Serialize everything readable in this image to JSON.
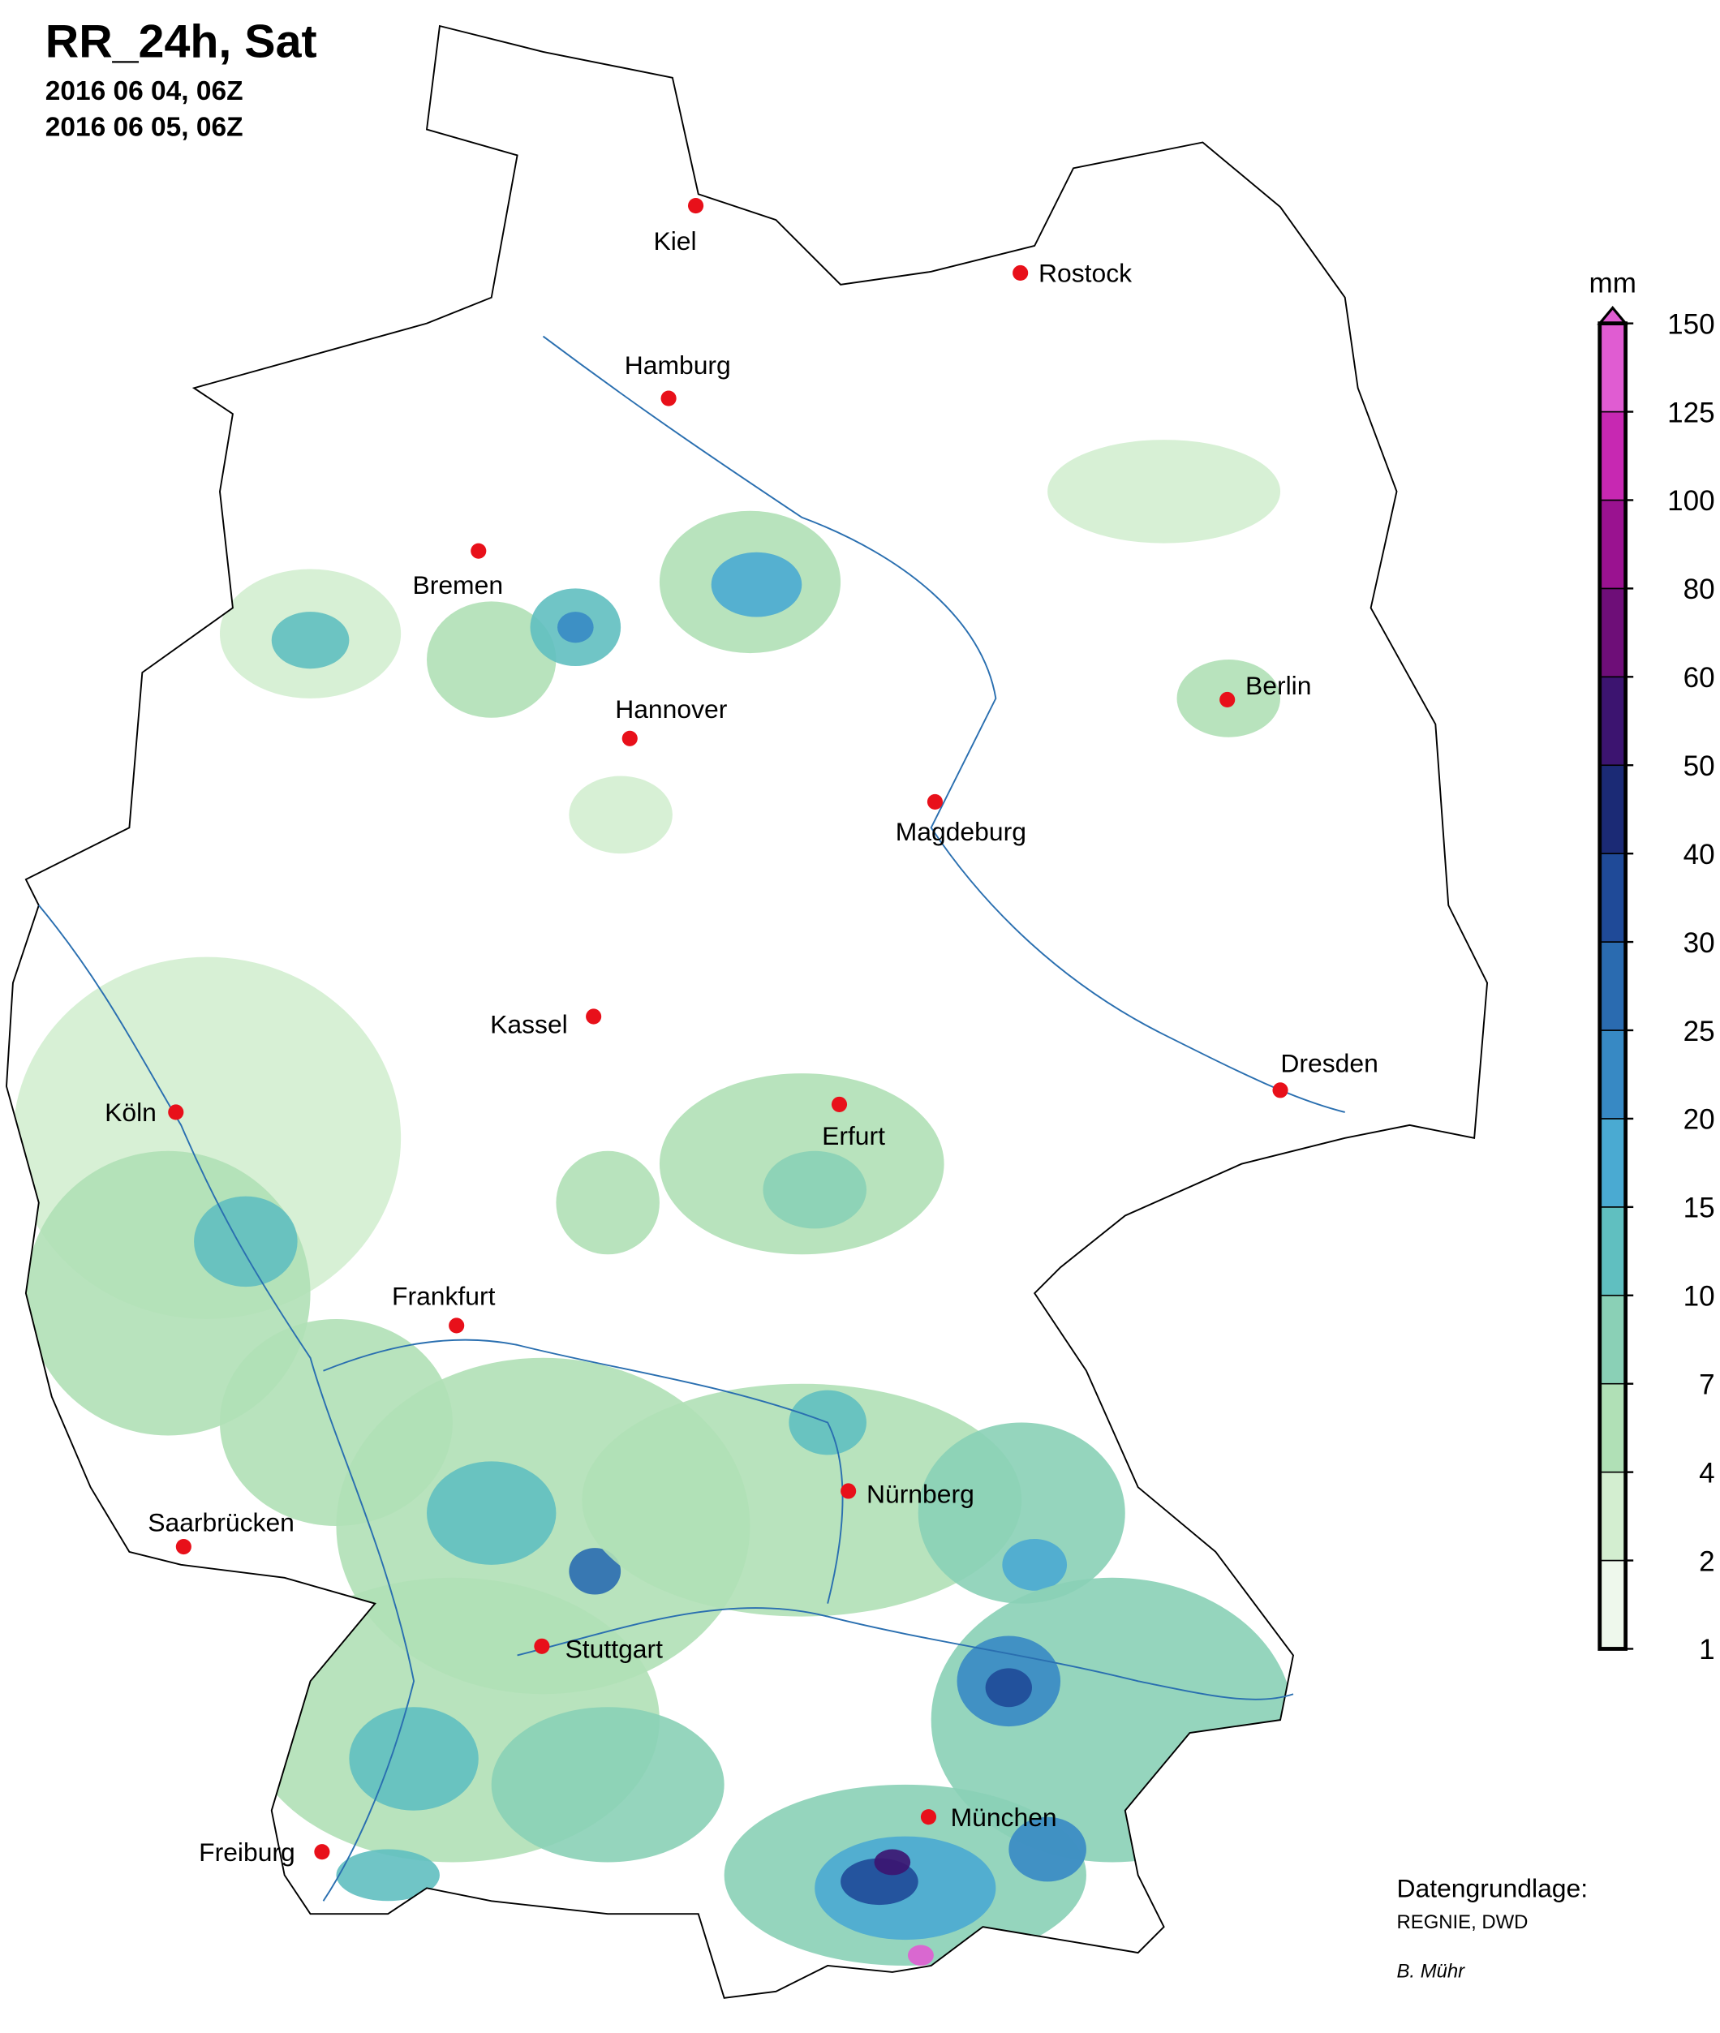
{
  "header": {
    "title": "RR_24h, Sat",
    "dates": [
      "2016 06 04, 06Z",
      "2016 06 05, 06Z"
    ]
  },
  "cities": [
    "Kiel",
    "Rostock",
    "Hamburg",
    "Bremen",
    "Hannover",
    "Magdeburg",
    "Berlin",
    "Kassel",
    "Köln",
    "Erfurt",
    "Dresden",
    "Frankfurt",
    "Nürnberg",
    "Saarbrücken",
    "Stuttgart",
    "München",
    "Freiburg"
  ],
  "colorbar": {
    "unit": "mm",
    "levels": [
      1,
      2,
      4,
      7,
      10,
      15,
      20,
      25,
      30,
      40,
      50,
      60,
      80,
      100,
      125,
      150
    ],
    "colors": [
      "#eef8ec",
      "#d3eed0",
      "#b0e0b6",
      "#8ad0b6",
      "#60bfc0",
      "#4aaad2",
      "#3789c4",
      "#2a6bb0",
      "#1f4a98",
      "#1b2a75",
      "#3c1470",
      "#6e0e78",
      "#9a1290",
      "#c728b2",
      "#e05cd2"
    ]
  },
  "credits": {
    "source_label": "Datengrundlage:",
    "source": "REGNIE, DWD",
    "author": "B. Mühr"
  }
}
